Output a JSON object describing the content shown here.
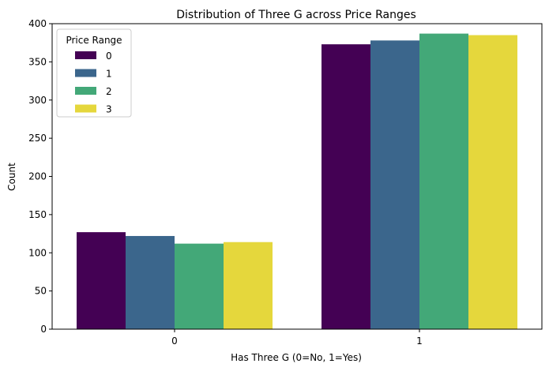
{
  "chart_data": {
    "type": "bar",
    "title": "Distribution of Three G across Price Ranges",
    "xlabel": "Has Three G (0=No, 1=Yes)",
    "ylabel": "Count",
    "categories": [
      "0",
      "1"
    ],
    "ylim": [
      0,
      400
    ],
    "yticks": [
      0,
      50,
      100,
      150,
      200,
      250,
      300,
      350,
      400
    ],
    "grid": false,
    "legend": {
      "title": "Price Range",
      "placement": "top-left"
    },
    "series": [
      {
        "name": "0",
        "color": "#440154",
        "values": [
          127,
          373
        ]
      },
      {
        "name": "1",
        "color": "#3b668c",
        "values": [
          122,
          378
        ]
      },
      {
        "name": "2",
        "color": "#43a878",
        "values": [
          112,
          387
        ]
      },
      {
        "name": "3",
        "color": "#e5d73c",
        "values": [
          114,
          385
        ]
      }
    ]
  }
}
